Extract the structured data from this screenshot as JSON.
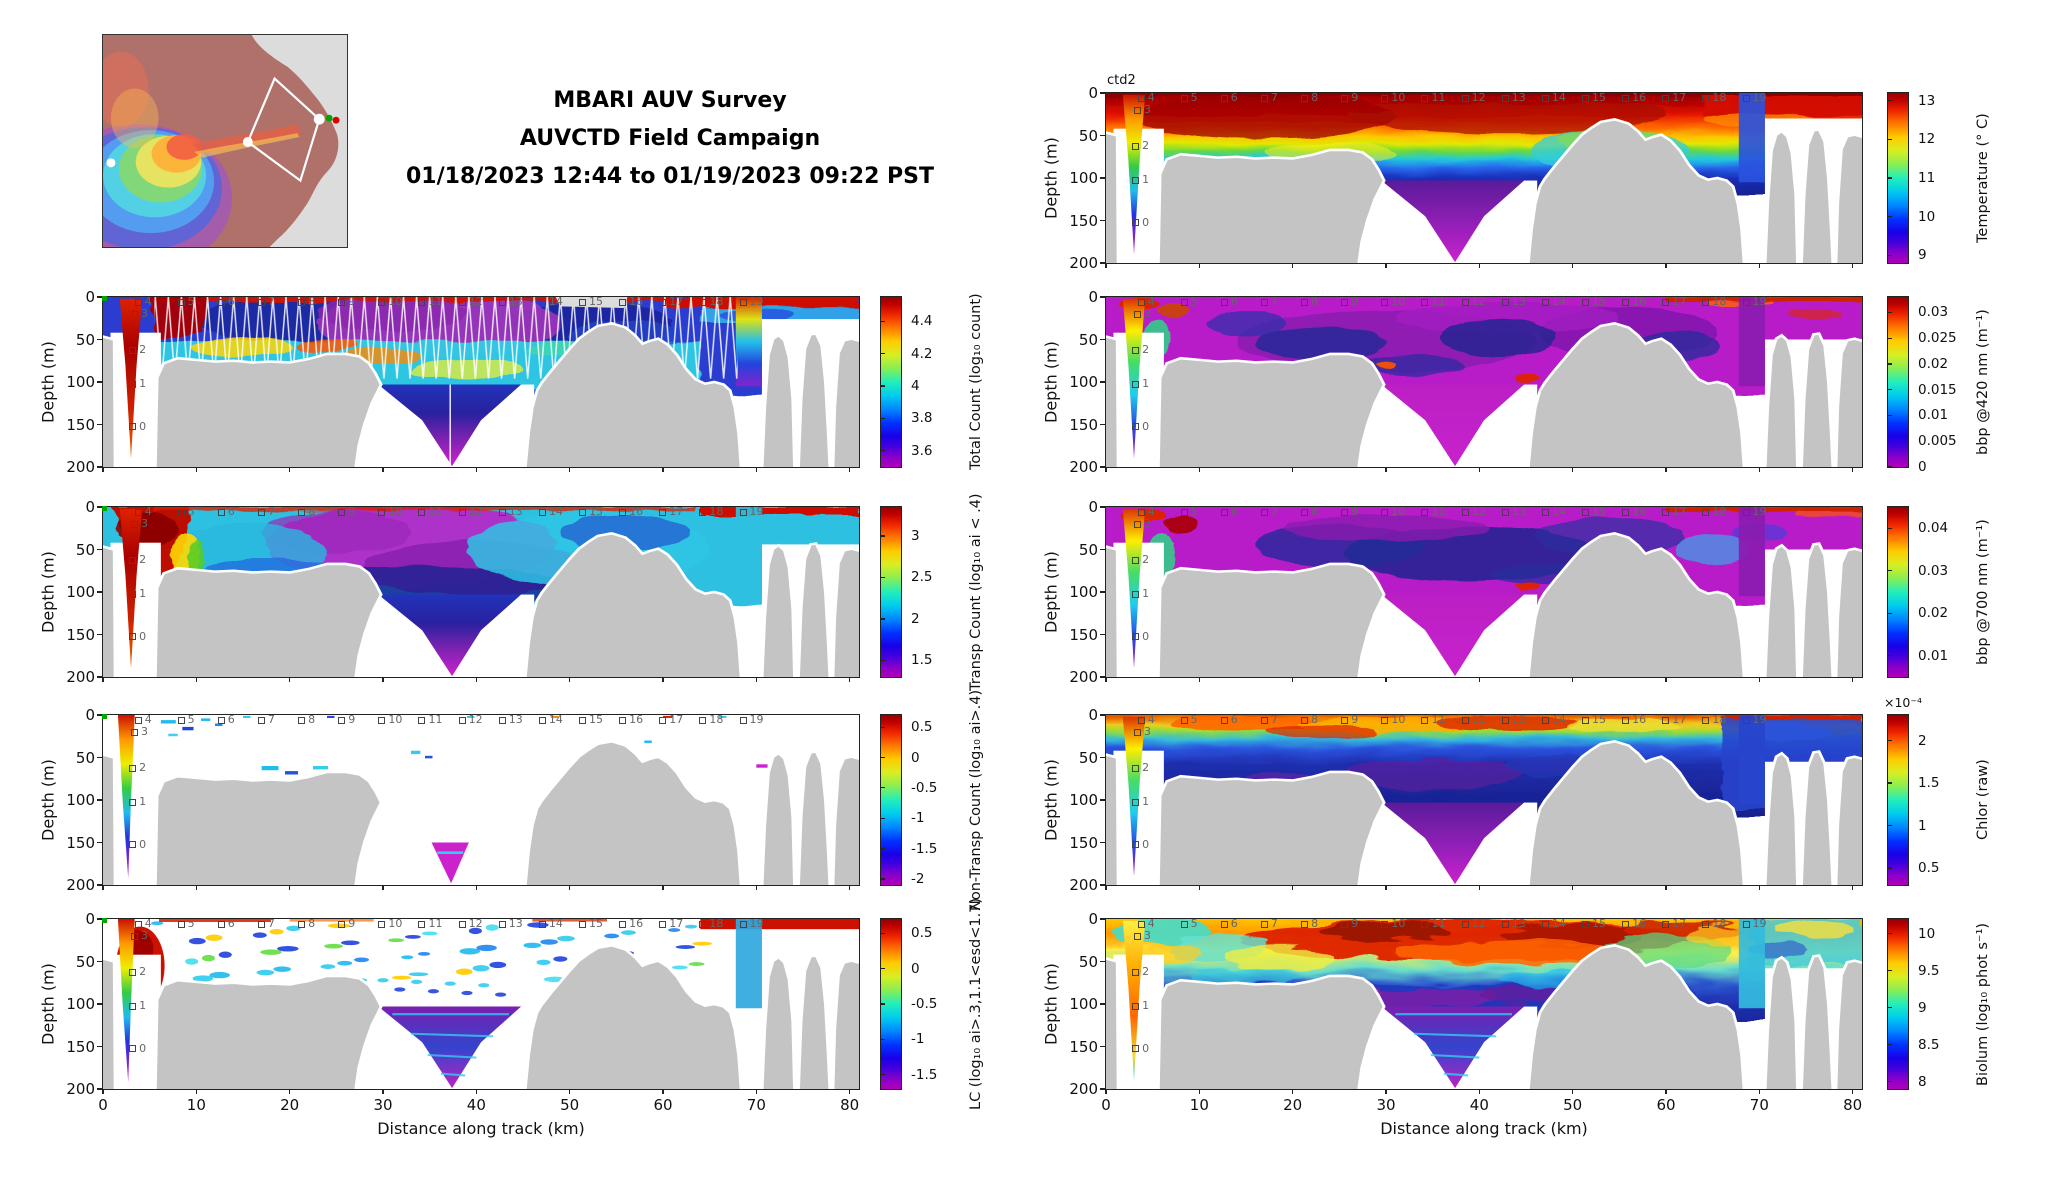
{
  "title": {
    "line1": "MBARI AUV Survey",
    "line2": "AUVCTD Field Campaign",
    "line3": "01/18/2023 12:44 to 01/19/2023 09:22 PST"
  },
  "colors": {
    "background": "#ffffff",
    "seafloor_gray": "#c4c4c4",
    "surface_gap_gray": "#dcdcdc",
    "waypoint_label": "#666666",
    "track_white": "#ffffff",
    "start_marker_green": "#00a500",
    "end_marker_red": "#dd0000",
    "colormap_stops": [
      "#b000b8",
      "#8800cc",
      "#4400dd",
      "#1a00e8",
      "#0033ff",
      "#0088ff",
      "#00ccee",
      "#22eebb",
      "#88ee55",
      "#d8ee22",
      "#ffcc00",
      "#ff7700",
      "#ee2200",
      "#bb0000",
      "#990000"
    ]
  },
  "chart_data": {
    "type": "heatmap",
    "figure_title": [
      "MBARI AUV Survey",
      "AUVCTD Field Campaign",
      "01/18/2023 12:44 to 01/19/2023 09:22 PST"
    ],
    "layout": "two columns of depth-section heatmaps; left column: inset bathymetry map + 4 panels; right column: 5 panels; shared jet-style colormap with magenta minimum",
    "shared_axes": {
      "xlabel": "Distance along track (km)",
      "x_ticks": [
        "0",
        "10",
        "20",
        "30",
        "40",
        "50",
        "60",
        "70",
        "80"
      ],
      "x_range": [
        0,
        81
      ],
      "ylabel": "Depth (m)",
      "y_ticks": [
        "0",
        "50",
        "100",
        "150",
        "200"
      ],
      "y_range": [
        0,
        200
      ],
      "y_direction": "depth increases downward"
    },
    "seafloor_profile_km_depth_m": [
      [
        0,
        50
      ],
      [
        1,
        55
      ],
      [
        2,
        190
      ],
      [
        5,
        90
      ],
      [
        7,
        73
      ],
      [
        10,
        74
      ],
      [
        15,
        76
      ],
      [
        20,
        77
      ],
      [
        24,
        68
      ],
      [
        28,
        80
      ],
      [
        30,
        103
      ],
      [
        36.5,
        200
      ],
      [
        45,
        160
      ],
      [
        47,
        100
      ],
      [
        50,
        62
      ],
      [
        54,
        32
      ],
      [
        57,
        45
      ],
      [
        59,
        50
      ],
      [
        62,
        80
      ],
      [
        65,
        101
      ],
      [
        67,
        110
      ],
      [
        68.5,
        200
      ],
      [
        72,
        46
      ],
      [
        74,
        200
      ],
      [
        76,
        44
      ],
      [
        77.5,
        195
      ],
      [
        79,
        50
      ],
      [
        81,
        53
      ]
    ],
    "waypoints": [
      {
        "n": "0",
        "km": 2.8,
        "depth_m": 150
      },
      {
        "n": "1",
        "km": 2.8,
        "depth_m": 100
      },
      {
        "n": "2",
        "km": 2.8,
        "depth_m": 60
      },
      {
        "n": "3",
        "km": 3.0,
        "depth_m": 18
      },
      {
        "n": "4",
        "km": 3.4,
        "depth_m": 4
      },
      {
        "n": "5",
        "km": 8.0,
        "depth_m": 4
      },
      {
        "n": "6",
        "km": 12.3,
        "depth_m": 4
      },
      {
        "n": "7",
        "km": 16.6,
        "depth_m": 4
      },
      {
        "n": "8",
        "km": 20.9,
        "depth_m": 4
      },
      {
        "n": "9",
        "km": 25.2,
        "depth_m": 4
      },
      {
        "n": "10",
        "km": 29.5,
        "depth_m": 4
      },
      {
        "n": "11",
        "km": 33.8,
        "depth_m": 4
      },
      {
        "n": "12",
        "km": 38.1,
        "depth_m": 4
      },
      {
        "n": "13",
        "km": 42.4,
        "depth_m": 4
      },
      {
        "n": "14",
        "km": 46.7,
        "depth_m": 4
      },
      {
        "n": "15",
        "km": 51.0,
        "depth_m": 4
      },
      {
        "n": "16",
        "km": 55.3,
        "depth_m": 4
      },
      {
        "n": "17",
        "km": 59.6,
        "depth_m": 4
      },
      {
        "n": "18",
        "km": 63.9,
        "depth_m": 4
      },
      {
        "n": "19",
        "km": 68.2,
        "depth_m": 4
      }
    ],
    "panels": [
      {
        "id": "total-count",
        "side": "left",
        "row": 2,
        "annotation": "",
        "colorbar": {
          "label": "Total Count (log₁₀ count)",
          "ticks": [
            "3.6",
            "3.8",
            "4",
            "4.2",
            "4.4"
          ],
          "range": [
            3.5,
            4.55
          ],
          "scale": ""
        },
        "qualitative_features": "red/dark-red surface strip and nearshore wedge; blue upper layer with magenta patch mid-track; cyan band 50-100 m with orange/yellow blobs; white AUV yo-yo track lines; magenta V in canyon below 100 m"
      },
      {
        "id": "transp-count",
        "side": "left",
        "row": 3,
        "annotation": "",
        "colorbar": {
          "label": "Transp Count (log₁₀ ai < .4)",
          "ticks": [
            "1.5",
            "2",
            "2.5",
            "3"
          ],
          "range": [
            1.3,
            3.35
          ],
          "scale": ""
        },
        "qualitative_features": "large red region 0-8 km full depth; cyan field with big magenta/purple blob 18-45 km; navy band near 90 m; magenta canyon V"
      },
      {
        "id": "non-transp-count",
        "side": "left",
        "row": 4,
        "annotation": "",
        "colorbar": {
          "label": "Non-Transp Count (log₁₀ ai>.4)",
          "ticks": [
            "-2",
            "-1.5",
            "-1",
            "-0.5",
            "0",
            "0.5"
          ],
          "range": [
            -2.1,
            0.7
          ],
          "scale": ""
        },
        "qualitative_features": "mostly empty (white); narrow rainbow strip at 2-3 km; scattered cyan/blue patches near 5-12 km surface and 18-27 km at 55-75 m; tiny magenta sliver in canyon tip"
      },
      {
        "id": "lc",
        "side": "left",
        "row": 5,
        "annotation": "",
        "colorbar": {
          "label": "LC (log₁₀ ai>.3,1.1<esd<1.7)",
          "ticks": [
            "-1.5",
            "-1",
            "-0.5",
            "0",
            "0.5"
          ],
          "range": [
            -1.7,
            0.7
          ],
          "scale": ""
        },
        "qualitative_features": "white field peppered with small cyan/blue patches above 70 m; red blob at 2-6 km 15-100 m; red surface strip far right; striped cyan/magenta canyon V"
      },
      {
        "id": "temperature",
        "side": "right",
        "row": 1,
        "annotation": "ctd2",
        "colorbar": {
          "label": "Temperature (° C)",
          "ticks": [
            "9",
            "10",
            "11",
            "12",
            "13"
          ],
          "range": [
            8.8,
            13.2
          ],
          "scale": ""
        },
        "qualitative_features": "warm 12.5-13 °C dark-red surface layer to ~40 m; sharp thermocline through yellow/green/cyan to blue by ~90 m; purple/magenta 9-9.5 °C water in canyon V; rainbow vertical profile at 2-3 km"
      },
      {
        "id": "bbp420",
        "side": "right",
        "row": 2,
        "annotation": "",
        "colorbar": {
          "label": "bbp @420 nm (m⁻¹)",
          "ticks": [
            "0",
            "0.005",
            "0.01",
            "0.015",
            "0.02",
            "0.025",
            "0.03"
          ],
          "range": [
            0,
            0.033
          ],
          "scale": ""
        },
        "qualitative_features": "low (magenta/purple) backscatter nearly everywhere with navy patches; high red values nearshore surface (0-4 km) and thin red surface strip at far right; green/cyan strip at 2-3 km"
      },
      {
        "id": "bbp700",
        "side": "right",
        "row": 3,
        "annotation": "",
        "colorbar": {
          "label": "bbp @700 nm (m⁻¹)",
          "ticks": [
            "0.01",
            "0.02",
            "0.03",
            "0.04"
          ],
          "range": [
            0.005,
            0.045
          ],
          "scale": ""
        },
        "qualitative_features": "same pattern as bbp @420 nm: magenta background, dark-blue mid-track patches, red nearshore surface maximum, red strip far right"
      },
      {
        "id": "chlor",
        "side": "right",
        "row": 4,
        "annotation": "",
        "colorbar": {
          "label": "Chlor (raw)",
          "ticks": [
            "0.5",
            "1",
            "1.5",
            "2"
          ],
          "range": [
            0.3,
            2.3
          ],
          "scale": "×10⁻⁴"
        },
        "qualitative_features": "red/orange/yellow chlorophyll maximum in upper ~25 m along most of track; blue/navy below 30 m with purple patches near seafloor; magenta canyon V; blue far-right section"
      },
      {
        "id": "biolum",
        "side": "right",
        "row": 5,
        "annotation": "",
        "colorbar": {
          "label": "Biolum (log₁₀ phot s⁻¹)",
          "ticks": [
            "8",
            "8.5",
            "9",
            "9.5",
            "10"
          ],
          "range": [
            7.9,
            10.2
          ],
          "scale": ""
        },
        "qualitative_features": "mottled field: red/dark-red maximum 5-60 m between 15-52 km, yellow-green mottle elsewhere at surface, cyan-blue 60-120 m with purple near floor, striped purple/cyan canyon V"
      }
    ],
    "inset_map": {
      "description": "Monterey Bay shaded bathymetry with AUV survey track",
      "track_shape": "white quadrilateral (kite) over canyon head",
      "markers": [
        "white station dot mid-canyon",
        "white station dot at track east vertex",
        "white dot far west",
        "green start dot",
        "red end dot"
      ]
    }
  }
}
